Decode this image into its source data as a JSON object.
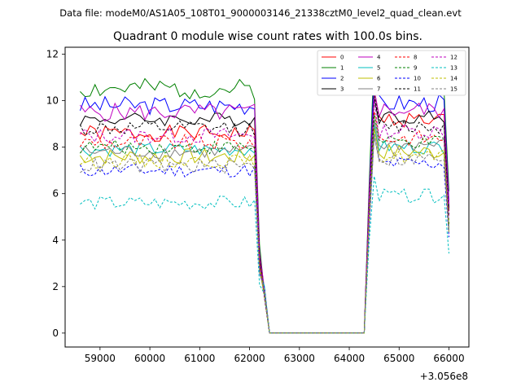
{
  "figure": {
    "suptitle": "Data file: modeM0/AS1A05_108T01_9000003146_21338cztM0_level2_quad_clean.evt",
    "title": "Quadrant 0 module wise count rates with 100.0s bins.",
    "x_offset_text": "+3.056e8"
  },
  "chart_data": {
    "type": "line",
    "title": "Quadrant 0 module wise count rates with 100.0s bins.",
    "xlabel": "",
    "ylabel": "",
    "x_offset": 305600000,
    "xlim": [
      58300,
      66400
    ],
    "ylim": [
      -0.6,
      12.3
    ],
    "xticks": [
      59000,
      60000,
      61000,
      62000,
      63000,
      64000,
      65000,
      66000
    ],
    "xtick_labels": [
      "59000",
      "60000",
      "61000",
      "62000",
      "63000",
      "64000",
      "65000",
      "66000"
    ],
    "yticks": [
      0,
      2,
      4,
      6,
      8,
      10,
      12
    ],
    "ytick_labels": [
      "0",
      "2",
      "4",
      "6",
      "8",
      "10",
      "12"
    ],
    "grid": false,
    "legend_position": "top-right",
    "segments": [
      {
        "x_start": 58600,
        "x_end": 62200,
        "step": 100
      },
      {
        "x_start": 62300,
        "x_end": 64300,
        "step": 100,
        "gap": true
      },
      {
        "x_start": 64400,
        "x_end": 66000,
        "step": 100
      }
    ],
    "series": [
      {
        "name": "0",
        "color": "#ff0000",
        "dash": "solid",
        "level": 8.6,
        "late_level": 9.2,
        "amp": 0.35,
        "seed": 1
      },
      {
        "name": "1",
        "color": "#008000",
        "dash": "solid",
        "level": 10.5,
        "late_level": 10.7,
        "amp": 0.45,
        "seed": 2
      },
      {
        "name": "2",
        "color": "#0000ff",
        "dash": "solid",
        "level": 9.8,
        "late_level": 9.9,
        "amp": 0.4,
        "seed": 3
      },
      {
        "name": "3",
        "color": "#000000",
        "dash": "solid",
        "level": 9.2,
        "late_level": 9.3,
        "amp": 0.3,
        "seed": 4
      },
      {
        "name": "4",
        "color": "#bf00bf",
        "dash": "solid",
        "level": 9.5,
        "late_level": 9.6,
        "amp": 0.4,
        "seed": 5
      },
      {
        "name": "5",
        "color": "#00bfbf",
        "dash": "solid",
        "level": 7.9,
        "late_level": 8.0,
        "amp": 0.3,
        "seed": 6
      },
      {
        "name": "6",
        "color": "#bfbf00",
        "dash": "solid",
        "level": 7.6,
        "late_level": 7.8,
        "amp": 0.35,
        "seed": 7
      },
      {
        "name": "7",
        "color": "#808080",
        "dash": "solid",
        "level": 7.8,
        "late_level": 8.1,
        "amp": 0.3,
        "seed": 8
      },
      {
        "name": "8",
        "color": "#ff0000",
        "dash": "dashed",
        "level": 8.2,
        "late_level": 8.4,
        "amp": 0.35,
        "seed": 9
      },
      {
        "name": "9",
        "color": "#008000",
        "dash": "dashed",
        "level": 8.0,
        "late_level": 8.2,
        "amp": 0.3,
        "seed": 10
      },
      {
        "name": "10",
        "color": "#0000ff",
        "dash": "dashed",
        "level": 7.0,
        "late_level": 7.3,
        "amp": 0.3,
        "seed": 11
      },
      {
        "name": "11",
        "color": "#000000",
        "dash": "dashed",
        "level": 8.8,
        "late_level": 8.9,
        "amp": 0.35,
        "seed": 12
      },
      {
        "name": "12",
        "color": "#bf00bf",
        "dash": "dashed",
        "level": 8.5,
        "late_level": 8.7,
        "amp": 0.35,
        "seed": 13
      },
      {
        "name": "13",
        "color": "#00bfbf",
        "dash": "dashed",
        "level": 5.6,
        "late_level": 5.9,
        "amp": 0.3,
        "seed": 14
      },
      {
        "name": "14",
        "color": "#bfbf00",
        "dash": "dashed",
        "level": 7.4,
        "late_level": 7.6,
        "amp": 0.3,
        "seed": 15
      },
      {
        "name": "15",
        "color": "#808080",
        "dash": "dashed",
        "level": 7.2,
        "late_level": 7.5,
        "amp": 0.35,
        "seed": 16
      }
    ]
  }
}
